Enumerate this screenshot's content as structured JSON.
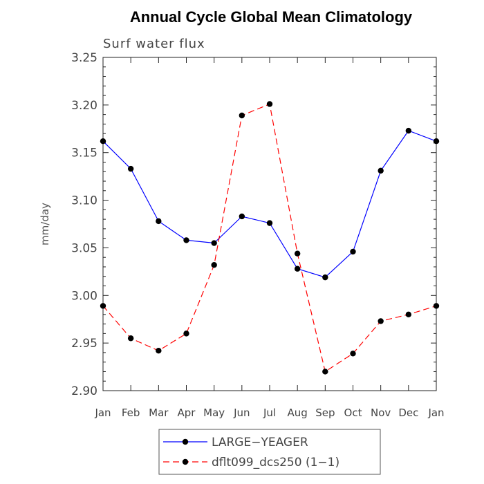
{
  "chart_data": {
    "type": "line",
    "title": "Annual Cycle Global Mean Climatology",
    "subtitle": "Surf water flux",
    "xlabel": "",
    "ylabel": "mm/day",
    "categories": [
      "Jan",
      "Feb",
      "Mar",
      "Apr",
      "May",
      "Jun",
      "Jul",
      "Aug",
      "Sep",
      "Oct",
      "Nov",
      "Dec",
      "Jan"
    ],
    "ylim": [
      2.9,
      3.25
    ],
    "yticks": [
      "2.90",
      "2.95",
      "3.00",
      "3.05",
      "3.10",
      "3.15",
      "3.20",
      "3.25"
    ],
    "legend_position": "bottom-center",
    "series": [
      {
        "name": "LARGE−YEAGER",
        "color": "#0000ff",
        "dash": "solid",
        "marker": "circle",
        "values": [
          3.162,
          3.133,
          3.078,
          3.058,
          3.055,
          3.083,
          3.076,
          3.028,
          3.019,
          3.046,
          3.131,
          3.173,
          3.162
        ]
      },
      {
        "name": "dflt099_dcs250 (1−1)",
        "color": "#ff0000",
        "dash": "dashed",
        "marker": "circle",
        "values": [
          2.989,
          2.955,
          2.942,
          2.96,
          3.032,
          3.189,
          3.201,
          3.044,
          2.92,
          2.939,
          2.973,
          2.98,
          2.989
        ]
      }
    ]
  }
}
